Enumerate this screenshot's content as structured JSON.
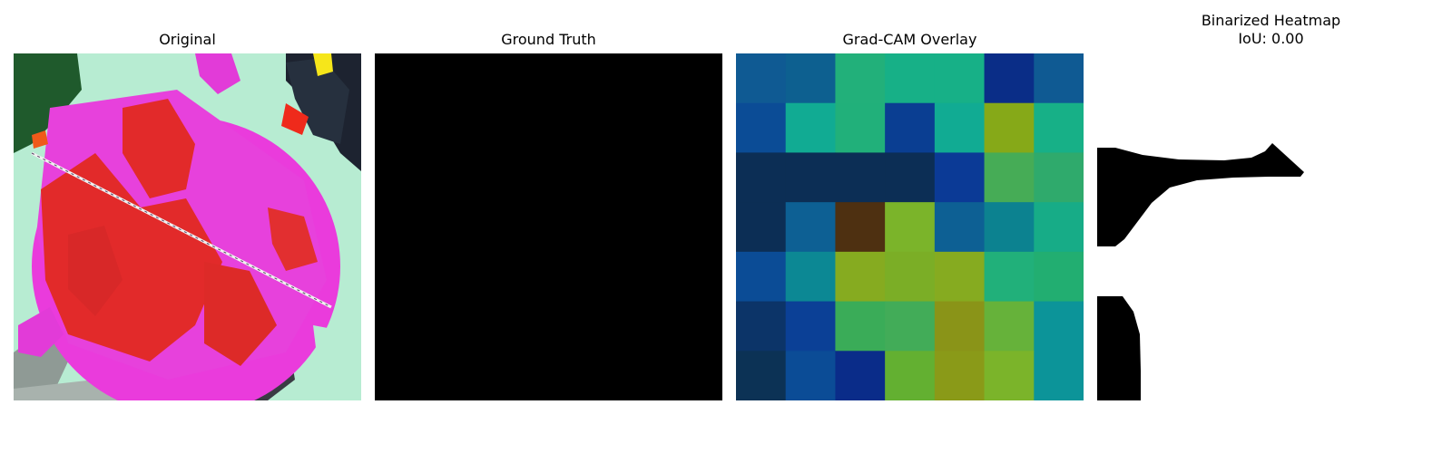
{
  "panels": [
    {
      "title": "Original"
    },
    {
      "title": "Ground Truth"
    },
    {
      "title": "Grad-CAM Overlay"
    },
    {
      "title": "Binarized Heatmap",
      "subtitle": "IoU: 0.00"
    }
  ],
  "gradcam_grid": {
    "rows": 7,
    "cols": 7,
    "colors": [
      [
        "#0f5a93",
        "#0d6090",
        "#22b07a",
        "#17b087",
        "#17b087",
        "#0a2d87",
        "#0f5a93"
      ],
      [
        "#0b4c96",
        "#11ab93",
        "#21b07a",
        "#0a3e92",
        "#11ab93",
        "#86a918",
        "#17b087"
      ],
      [
        "#0c2e55",
        "#0c2e55",
        "#0c2e55",
        "#0c2e55",
        "#0b3a96",
        "#46ac56",
        "#2faa6c"
      ],
      [
        "#0c2e55",
        "#0d6094",
        "#4e3011",
        "#7bb42a",
        "#0d6094",
        "#0c8290",
        "#17ac87"
      ],
      [
        "#0b4c96",
        "#0c8894",
        "#86ab20",
        "#7bae26",
        "#86ab20",
        "#21b07a",
        "#22ae71"
      ],
      [
        "#0c3468",
        "#0b4096",
        "#3aac58",
        "#42ac58",
        "#8a9418",
        "#66b23a",
        "#0c9499"
      ],
      [
        "#0c3255",
        "#0b4c96",
        "#0a2c89",
        "#63b031",
        "#8a9a18",
        "#7bb42a",
        "#0c9499"
      ]
    ]
  }
}
